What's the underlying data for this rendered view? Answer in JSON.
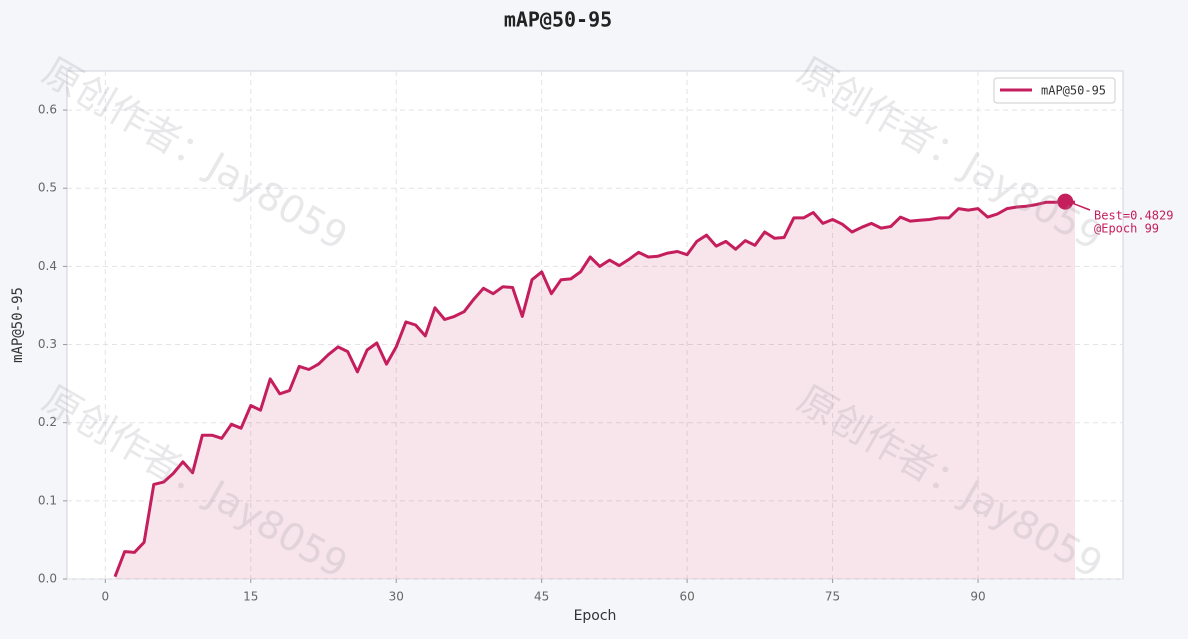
{
  "chart_data": {
    "type": "line",
    "title": "mAP@50-95",
    "x_label": "Epoch",
    "y_label": "mAP@50-95",
    "x": [
      1,
      2,
      3,
      4,
      5,
      6,
      7,
      8,
      9,
      10,
      11,
      12,
      13,
      14,
      15,
      16,
      17,
      18,
      19,
      20,
      21,
      22,
      23,
      24,
      25,
      26,
      27,
      28,
      29,
      30,
      31,
      32,
      33,
      34,
      35,
      36,
      37,
      38,
      39,
      40,
      41,
      42,
      43,
      44,
      45,
      46,
      47,
      48,
      49,
      50,
      51,
      52,
      53,
      54,
      55,
      56,
      57,
      58,
      59,
      60,
      61,
      62,
      63,
      64,
      65,
      66,
      67,
      68,
      69,
      70,
      71,
      72,
      73,
      74,
      75,
      76,
      77,
      78,
      79,
      80,
      81,
      82,
      83,
      84,
      85,
      86,
      87,
      88,
      89,
      90,
      91,
      92,
      93,
      94,
      95,
      96,
      97,
      98,
      99,
      100
    ],
    "series": [
      {
        "name": "mAP@50-95",
        "color": "#c41e5c",
        "values": [
          0.003,
          0.035,
          0.034,
          0.047,
          0.121,
          0.124,
          0.135,
          0.15,
          0.136,
          0.184,
          0.184,
          0.18,
          0.198,
          0.193,
          0.222,
          0.216,
          0.256,
          0.237,
          0.241,
          0.272,
          0.268,
          0.275,
          0.287,
          0.297,
          0.291,
          0.265,
          0.293,
          0.302,
          0.275,
          0.297,
          0.329,
          0.325,
          0.311,
          0.347,
          0.332,
          0.336,
          0.342,
          0.358,
          0.372,
          0.365,
          0.374,
          0.373,
          0.336,
          0.383,
          0.393,
          0.365,
          0.383,
          0.384,
          0.393,
          0.412,
          0.4,
          0.408,
          0.401,
          0.409,
          0.418,
          0.412,
          0.413,
          0.417,
          0.419,
          0.415,
          0.432,
          0.44,
          0.426,
          0.432,
          0.422,
          0.433,
          0.427,
          0.444,
          0.436,
          0.437,
          0.462,
          0.462,
          0.469,
          0.455,
          0.46,
          0.454,
          0.444,
          0.45,
          0.455,
          0.449,
          0.451,
          0.463,
          0.458,
          0.459,
          0.46,
          0.462,
          0.462,
          0.474,
          0.472,
          0.474,
          0.463,
          0.467,
          0.474,
          0.476,
          0.477,
          0.479,
          0.482,
          0.482,
          0.4829,
          0.482
        ]
      }
    ],
    "xlim": [
      -3.95,
      104.95
    ],
    "xticks": [
      0,
      15,
      30,
      45,
      60,
      75,
      90
    ],
    "ylim": [
      0,
      0.65
    ],
    "yticks": [
      {
        "value": 0,
        "label": "0.0"
      },
      0.1,
      0.2,
      0.3,
      0.4,
      0.5,
      0.6
    ],
    "grid": true,
    "legend": "upper right",
    "fill_area": true,
    "best_index": 98,
    "annotation": [
      "Best=0.4829",
      "@Epoch 99"
    ],
    "watermark": "原创作者：Jay8059"
  }
}
